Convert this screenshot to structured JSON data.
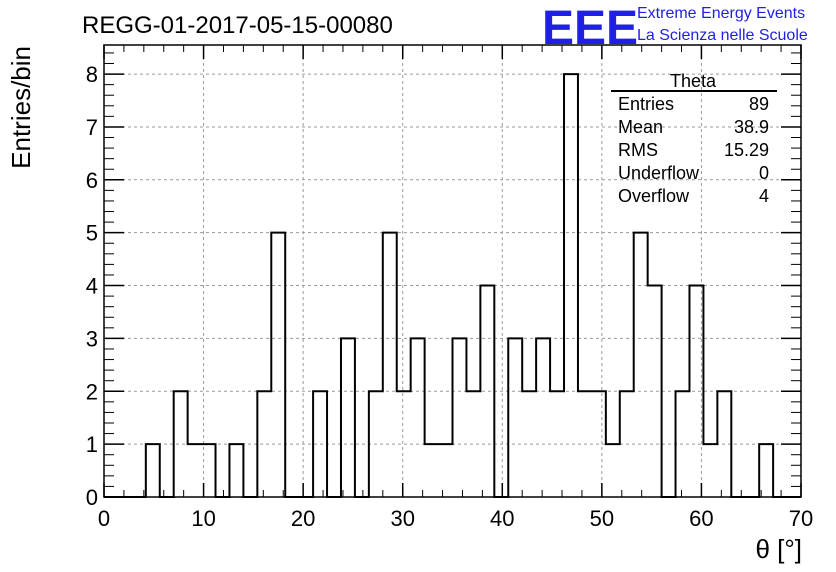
{
  "title": "REGG-01-2017-05-15-00080",
  "logo": {
    "text": "EEE",
    "line1": "Extreme Energy Events",
    "line2": "La Scienza nelle Scuole",
    "color": "#1f1fe6"
  },
  "chart_data": {
    "type": "bar",
    "histogram": true,
    "xlabel": "θ [°]",
    "ylabel": "Entries/bin",
    "xlim": [
      0,
      70
    ],
    "ylim": [
      0,
      8.55
    ],
    "bin_width": 1.4,
    "x_ticks": [
      0,
      10,
      20,
      30,
      40,
      50,
      60,
      70
    ],
    "y_ticks": [
      0,
      1,
      2,
      3,
      4,
      5,
      6,
      7,
      8
    ],
    "grid": true,
    "values": [
      0,
      0,
      0,
      1,
      0,
      2,
      1,
      1,
      0,
      1,
      0,
      2,
      5,
      0,
      0,
      2,
      0,
      3,
      0,
      2,
      5,
      2,
      3,
      1,
      1,
      3,
      2,
      4,
      0,
      3,
      2,
      3,
      2,
      8,
      2,
      2,
      1,
      2,
      5,
      4,
      0,
      2,
      4,
      1,
      2,
      0,
      0,
      1,
      0,
      0
    ],
    "stats": {
      "name": "Theta",
      "rows": [
        {
          "label": "Entries",
          "value": "89"
        },
        {
          "label": "Mean",
          "value": "38.9"
        },
        {
          "label": "RMS",
          "value": "15.29"
        },
        {
          "label": "Underflow",
          "value": "0"
        },
        {
          "label": "Overflow",
          "value": "4"
        }
      ]
    }
  }
}
